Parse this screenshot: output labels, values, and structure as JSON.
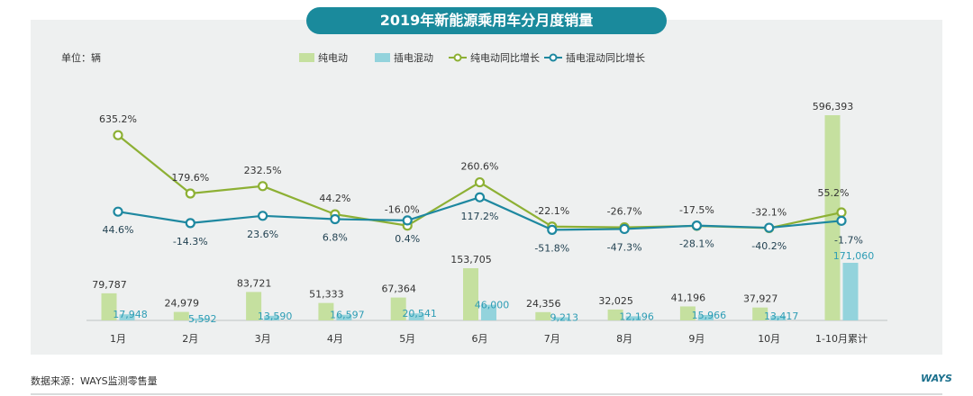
{
  "source": "数据来源：WAYS监测零售量",
  "logo": "WAYS",
  "colors": {
    "bev_bar": "#c5e09f",
    "phev_bar": "#93d3dc",
    "bev_line": "#8db034",
    "phev_line": "#1e88a0",
    "bev_label": "#333333",
    "phev_label": "#2e9db5",
    "bev_rate": "#333333",
    "phev_rate": "#1f3f4f"
  },
  "chart_data": {
    "type": "bar+line",
    "title": "2019年新能源乘用车分月度销量",
    "unit": "单位：辆",
    "categories": [
      "1月",
      "2月",
      "3月",
      "4月",
      "5月",
      "6月",
      "7月",
      "8月",
      "9月",
      "10月",
      "1-10月累计"
    ],
    "series": [
      {
        "name": "纯电动",
        "type": "bar",
        "values": [
          79787,
          24979,
          83721,
          51333,
          67364,
          153705,
          24356,
          32025,
          41196,
          37927,
          596393
        ],
        "labels": [
          "79,787",
          "24,979",
          "83,721",
          "51,333",
          "67,364",
          "153,705",
          "24,356",
          "32,025",
          "41,196",
          "37,927",
          "596,393"
        ]
      },
      {
        "name": "插电混动",
        "type": "bar",
        "values": [
          17948,
          5592,
          13590,
          16597,
          20541,
          46000,
          9213,
          12196,
          15966,
          13417,
          171060
        ],
        "labels": [
          "17,948",
          "5,592",
          "13,590",
          "16,597",
          "20,541",
          "46,000",
          "9,213",
          "12,196",
          "15,966",
          "13,417",
          "171,060"
        ]
      },
      {
        "name": "纯电动同比增长",
        "type": "line",
        "values": [
          635.2,
          179.6,
          232.5,
          44.2,
          -16.0,
          260.6,
          -22.1,
          -26.7,
          -17.5,
          -32.1,
          55.2
        ],
        "labels": [
          "635.2%",
          "179.6%",
          "232.5%",
          "44.2%",
          "-16.0%",
          "260.6%",
          "-22.1%",
          "-26.7%",
          "-17.5%",
          "-32.1%",
          "55.2%"
        ]
      },
      {
        "name": "插电混动同比增长",
        "type": "line",
        "values": [
          44.6,
          -14.3,
          23.6,
          6.8,
          0.4,
          117.2,
          -51.8,
          -47.3,
          -28.1,
          -40.2,
          -1.7
        ],
        "labels": [
          "44.6%",
          "-14.3%",
          "23.6%",
          "6.8%",
          "0.4%",
          "117.2%",
          "-51.8%",
          "-47.3%",
          "-28.1%",
          "-40.2%",
          "-1.7%"
        ]
      }
    ]
  }
}
